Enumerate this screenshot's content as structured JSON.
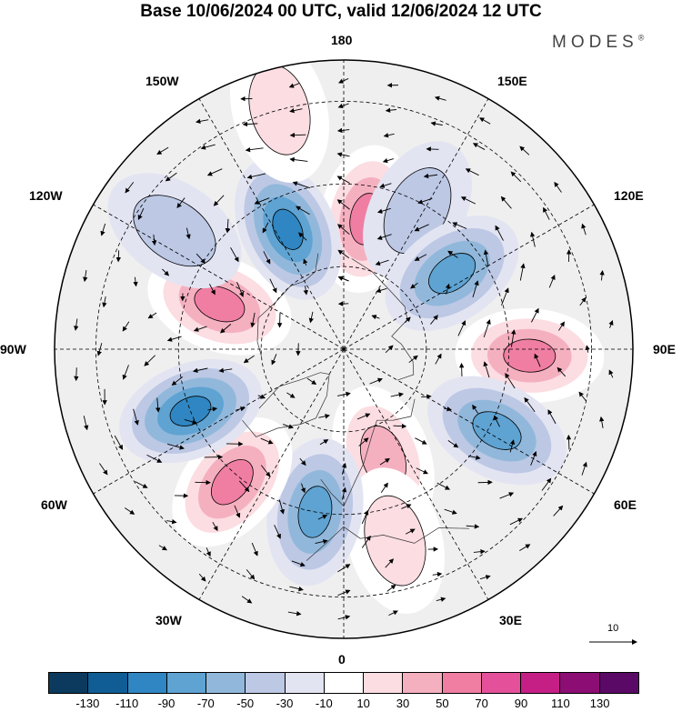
{
  "title": "Base 10/06/2024 00 UTC, valid 12/06/2024 12 UTC",
  "brand": "MODES",
  "brand_mark": "®",
  "lon_labels": [
    "180",
    "150E",
    "120E",
    "90E",
    "60E",
    "30E",
    "0",
    "30W",
    "60W",
    "90W",
    "120W",
    "150W"
  ],
  "vector_scale_label": "10",
  "colorbar": {
    "ticks": [
      "-130",
      "-110",
      "-90",
      "-70",
      "-50",
      "-30",
      "-10",
      "10",
      "30",
      "50",
      "70",
      "90",
      "110",
      "130"
    ],
    "colors": [
      "#0b3a5e",
      "#0f5d94",
      "#2f86c2",
      "#5ea3d2",
      "#91b8db",
      "#bcc8e4",
      "#e3e4f2",
      "#ffffff",
      "#fbdde2",
      "#f5b0c0",
      "#f07ea3",
      "#e4519a",
      "#c51f86",
      "#8c0d74",
      "#5a0a66"
    ]
  },
  "anomalies": [
    {
      "lon": 170,
      "lat": 58,
      "value": 70
    },
    {
      "lon": 152,
      "lat": 52,
      "value": -30
    },
    {
      "lon": 125,
      "lat": 58,
      "value": -70
    },
    {
      "lon": 88,
      "lat": 45,
      "value": 70
    },
    {
      "lon": 62,
      "lat": 48,
      "value": -70
    },
    {
      "lon": 20,
      "lat": 62,
      "value": 50
    },
    {
      "lon": 15,
      "lat": 42,
      "value": 30
    },
    {
      "lon": -10,
      "lat": 50,
      "value": -70
    },
    {
      "lon": -40,
      "lat": 48,
      "value": 70
    },
    {
      "lon": -68,
      "lat": 50,
      "value": -90
    },
    {
      "lon": -110,
      "lat": 58,
      "value": 70
    },
    {
      "lon": -155,
      "lat": 58,
      "value": -90
    },
    {
      "lon": -125,
      "lat": 40,
      "value": -30
    },
    {
      "lon": -165,
      "lat": 30,
      "value": 30
    }
  ]
}
